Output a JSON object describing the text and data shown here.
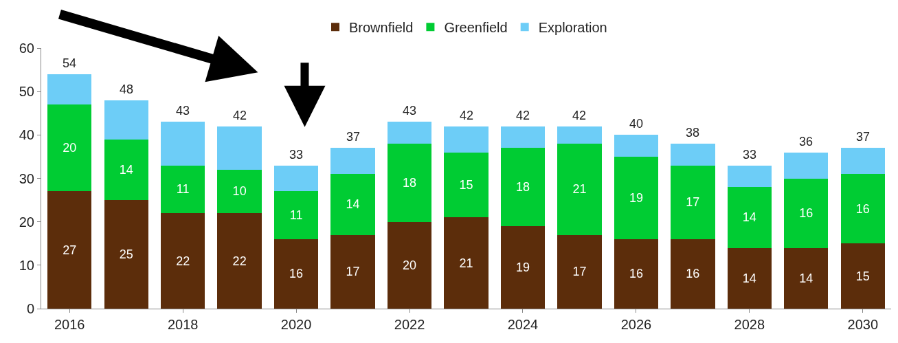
{
  "chart_data": {
    "type": "bar",
    "stacked": true,
    "categories": [
      "2016",
      null,
      "2018",
      null,
      "2020",
      null,
      "2022",
      null,
      "2024",
      null,
      "2026",
      null,
      "2028",
      null,
      "2030"
    ],
    "series": [
      {
        "name": "Brownfield",
        "color": "#5c2d0b",
        "values": [
          27,
          25,
          22,
          22,
          16,
          17,
          20,
          21,
          19,
          17,
          16,
          16,
          14,
          14,
          15
        ],
        "value_labels": [
          "27",
          "25",
          "22",
          "22",
          "16",
          "17",
          "20",
          "21",
          "19",
          "17",
          "16",
          "16",
          "14",
          "14",
          "15"
        ]
      },
      {
        "name": "Greenfield",
        "color": "#00cc33",
        "values": [
          20,
          14,
          11,
          10,
          11,
          14,
          18,
          15,
          18,
          21,
          19,
          17,
          14,
          16,
          16
        ],
        "value_labels": [
          "20",
          "14",
          "11",
          "10",
          "11",
          "14",
          "18",
          "15",
          "18",
          "21",
          "19",
          "17",
          "14",
          "16",
          "16"
        ]
      },
      {
        "name": "Exploration",
        "color": "#6dcdf7",
        "values": [
          7,
          9,
          10,
          10,
          6,
          6,
          5,
          6,
          5,
          4,
          5,
          5,
          5,
          6,
          6
        ]
      }
    ],
    "totals": [
      "54",
      "48",
      "43",
      "42",
      "33",
      "37",
      "43",
      "42",
      "42",
      "42",
      "40",
      "38",
      "33",
      "36",
      "37"
    ],
    "ylim": [
      0,
      60
    ],
    "yticks": [
      0,
      10,
      20,
      30,
      40,
      50,
      60
    ],
    "legend": "top"
  }
}
